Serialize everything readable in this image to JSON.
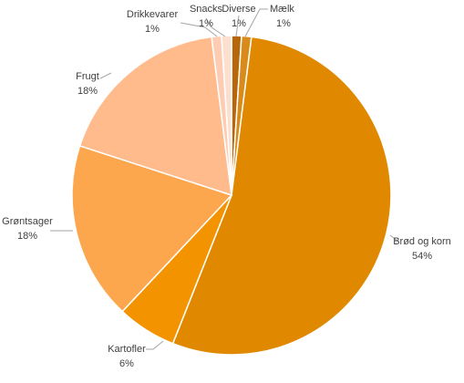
{
  "chart_data": {
    "type": "pie",
    "categories": [
      "Diverse",
      "Mælk",
      "Brød og korn",
      "Kartofler",
      "Grøntsager",
      "Frugt",
      "Drikkevarer",
      "Snacks"
    ],
    "values": [
      1,
      1,
      54,
      6,
      18,
      18,
      1,
      1
    ],
    "value_labels": [
      "1%",
      "1%",
      "54%",
      "6%",
      "18%",
      "18%",
      "1%",
      "1%"
    ],
    "colors": [
      "#b8660b",
      "#d88b1a",
      "#e08900",
      "#f39300",
      "#fca64d",
      "#ffbb8c",
      "#fdcdb3",
      "#fddfcf"
    ]
  }
}
